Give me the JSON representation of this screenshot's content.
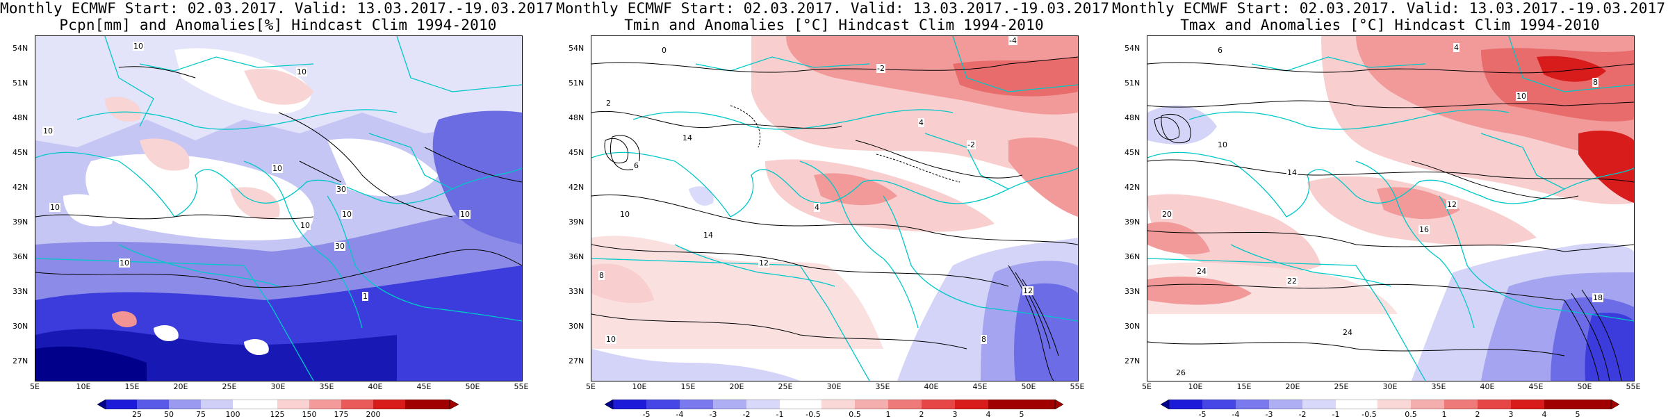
{
  "panels": [
    {
      "title_line1": "Monthly ECMWF Start: 02.03.2017. Valid: 13.03.2017.-19.03.2017.",
      "title_line2": "Pcpn[mm] and Anomalies[%] Hindcast Clim 1994-2010",
      "colorbar_ticks": [
        "25",
        "50",
        "75",
        "100",
        "125",
        "150",
        "175",
        "200"
      ],
      "colorbar_colors": [
        "#00008b",
        "#1c1cd8",
        "#5a5ae8",
        "#9a9af0",
        "#cfcff8",
        "#ffffff",
        "#fad2d2",
        "#f49a9a",
        "#ea5a5a",
        "#d81c1c",
        "#a00000"
      ],
      "contour_labels": [
        "10",
        "10",
        "10",
        "10",
        "10",
        "30",
        "10",
        "10",
        "30",
        "1",
        "10",
        "10"
      ]
    },
    {
      "title_line1": "Monthly ECMWF Start: 02.03.2017. Valid: 13.03.2017.-19.03.2017.",
      "title_line2": "Tmin and Anomalies [°C] Hindcast Clim 1994-2010",
      "colorbar_ticks": [
        "-5",
        "-4",
        "-3",
        "-2",
        "-1",
        "-0.5",
        "0.5",
        "1",
        "2",
        "3",
        "4",
        "5"
      ],
      "colorbar_colors": [
        "#00008b",
        "#1c1cd8",
        "#4646e6",
        "#7a7aee",
        "#aeaef5",
        "#d8d8fa",
        "#ffffff",
        "#fbd8d8",
        "#f5aeae",
        "#ee7a7a",
        "#e64646",
        "#d81c1c",
        "#a00000"
      ],
      "contour_labels": [
        "0",
        "-2",
        "-4",
        "2",
        "6",
        "10",
        "14",
        "8",
        "12",
        "10",
        "4",
        "-2",
        "12",
        "8",
        "14",
        "4"
      ]
    },
    {
      "title_line1": "Monthly ECMWF Start: 02.03.2017. Valid: 13.03.2017.-19.03.2017.",
      "title_line2": "Tmax and Anomalies [°C] Hindcast Clim 1994-2010",
      "colorbar_ticks": [
        "-5",
        "-4",
        "-3",
        "-2",
        "-1",
        "-0.5",
        "0.5",
        "1",
        "2",
        "3",
        "4",
        "5"
      ],
      "colorbar_colors": [
        "#00008b",
        "#1c1cd8",
        "#4646e6",
        "#7a7aee",
        "#aeaef5",
        "#d8d8fa",
        "#ffffff",
        "#fbd8d8",
        "#f5aeae",
        "#ee7a7a",
        "#e64646",
        "#d81c1c",
        "#a00000"
      ],
      "contour_labels": [
        "6",
        "4",
        "8",
        "10",
        "14",
        "16",
        "20",
        "24",
        "22",
        "24",
        "10",
        "12",
        "18",
        "26"
      ]
    }
  ],
  "lat_labels": [
    "54N",
    "51N",
    "48N",
    "45N",
    "42N",
    "39N",
    "36N",
    "33N",
    "30N",
    "27N"
  ],
  "lon_labels": [
    "5E",
    "10E",
    "15E",
    "20E",
    "25E",
    "30E",
    "35E",
    "40E",
    "45E",
    "50E",
    "55E"
  ],
  "colors": {
    "border": "#00c8c8",
    "contour": "#000000"
  }
}
